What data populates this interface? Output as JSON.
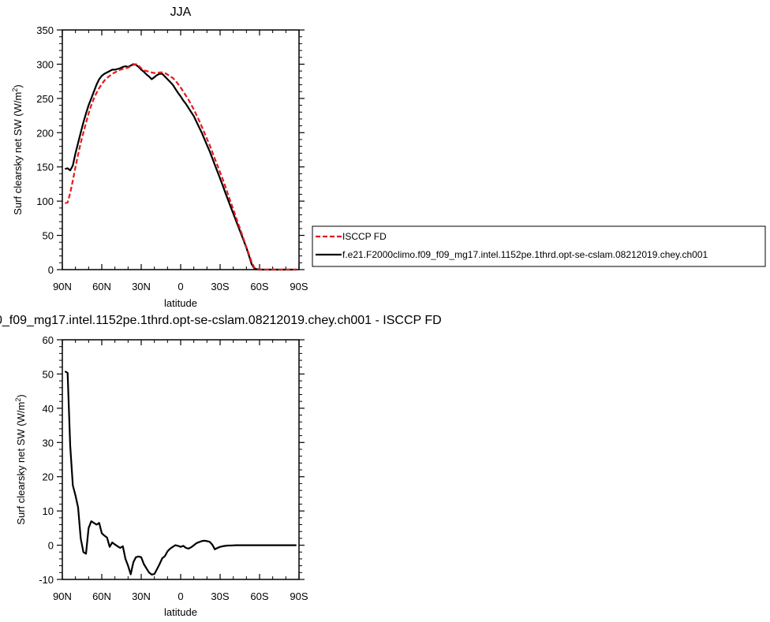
{
  "chart_data": [
    {
      "type": "line",
      "title": "JJA",
      "xlabel": "latitude",
      "ylabel": "Surf clearsky net SW (W/m",
      "ylabel_sup": "2",
      "ylabel_close": ")",
      "xlim": [
        90,
        -90
      ],
      "ylim": [
        0,
        350
      ],
      "x_ticks": [
        90,
        60,
        30,
        0,
        -30,
        -60,
        -90
      ],
      "x_tick_labels": [
        "90N",
        "60N",
        "30N",
        "0",
        "30S",
        "60S",
        "90S"
      ],
      "y_ticks": [
        0,
        50,
        100,
        150,
        200,
        250,
        300,
        350
      ],
      "y_tick_labels": [
        "0",
        "50",
        "100",
        "150",
        "200",
        "250",
        "300",
        "350"
      ],
      "legend_position": "right",
      "series": [
        {
          "name": "ISCCP FD",
          "color": "#e41a1c",
          "dash": "dashed",
          "x": [
            88,
            86,
            84,
            82,
            80,
            78,
            76,
            74,
            72,
            70,
            68,
            66,
            64,
            62,
            60,
            58,
            56,
            54,
            52,
            50,
            48,
            46,
            44,
            42,
            40,
            38,
            36,
            34,
            32,
            30,
            28,
            26,
            24,
            22,
            20,
            18,
            16,
            14,
            12,
            10,
            8,
            6,
            4,
            2,
            0,
            -2,
            -4,
            -6,
            -8,
            -10,
            -12,
            -14,
            -16,
            -18,
            -20,
            -22,
            -24,
            -26,
            -28,
            -30,
            -32,
            -34,
            -36,
            -38,
            -40,
            -42,
            -44,
            -46,
            -48,
            -50,
            -52,
            -54,
            -56,
            -58,
            -60,
            -62,
            -64,
            -66,
            -68,
            -70,
            -72,
            -74,
            -76,
            -78,
            -80,
            -82,
            -84,
            -86,
            -88
          ],
          "y": [
            97,
            98,
            112,
            130,
            150,
            168,
            185,
            200,
            214,
            228,
            240,
            250,
            258,
            265,
            271,
            276,
            280,
            283,
            286,
            288,
            290,
            292,
            293,
            294,
            295,
            297,
            299,
            300,
            298,
            294,
            291,
            290,
            289,
            288,
            287,
            287,
            288,
            288,
            287,
            285,
            282,
            280,
            276,
            271,
            266,
            260,
            254,
            248,
            241,
            234,
            226,
            218,
            209,
            200,
            191,
            182,
            172,
            162,
            152,
            142,
            132,
            121,
            110,
            99,
            88,
            77,
            66,
            55,
            44,
            33,
            22,
            11,
            3,
            1,
            0.5,
            0,
            0,
            0,
            0,
            0,
            0,
            0,
            0,
            0,
            0,
            0,
            0,
            0,
            0
          ]
        },
        {
          "name": "f.e21.F2000climo.f09_f09_mg17.intel.1152pe.1thrd.opt-se-cslam.08212019.chey.ch001",
          "color": "#000000",
          "dash": "solid",
          "x": [
            88,
            86,
            84,
            82,
            80,
            78,
            76,
            74,
            72,
            70,
            68,
            66,
            64,
            62,
            60,
            58,
            56,
            54,
            52,
            50,
            48,
            46,
            44,
            42,
            40,
            38,
            36,
            34,
            32,
            30,
            28,
            26,
            24,
            22,
            20,
            18,
            16,
            14,
            12,
            10,
            8,
            6,
            4,
            2,
            0,
            -2,
            -4,
            -6,
            -8,
            -10,
            -12,
            -14,
            -16,
            -18,
            -20,
            -22,
            -24,
            -26,
            -28,
            -30,
            -32,
            -34,
            -36,
            -38,
            -40,
            -42,
            -44,
            -46,
            -48,
            -50,
            -52,
            -54,
            -56,
            -58,
            -60,
            -62,
            -64,
            -66,
            -68,
            -70,
            -72,
            -74,
            -76,
            -78,
            -80,
            -82,
            -84,
            -86,
            -88
          ],
          "y": [
            147,
            148,
            145,
            152,
            170,
            185,
            200,
            215,
            228,
            240,
            250,
            260,
            270,
            278,
            283,
            286,
            288,
            290,
            292,
            292,
            293,
            294,
            296,
            297,
            296,
            298,
            300,
            299,
            296,
            292,
            289,
            285,
            282,
            278,
            281,
            284,
            286,
            286,
            282,
            278,
            274,
            270,
            264,
            258,
            253,
            247,
            242,
            236,
            230,
            224,
            216,
            208,
            200,
            191,
            182,
            173,
            163,
            153,
            143,
            133,
            123,
            112,
            102,
            92,
            82,
            72,
            62,
            52,
            42,
            32,
            20,
            8,
            2,
            0.5,
            0,
            0,
            0,
            0,
            0,
            0,
            0,
            0,
            0,
            0,
            0,
            0,
            0,
            0,
            0
          ]
        }
      ]
    },
    {
      "type": "line",
      "title": "_f09_mg17.intel.1152pe.1thrd.opt-se-cslam.08212019.chey.ch001 - ISCCP FD",
      "title_prefix": "0",
      "xlabel": "latitude",
      "ylabel": "Surf clearsky net SW (W/m",
      "ylabel_sup": "2",
      "ylabel_close": ")",
      "xlim": [
        90,
        -90
      ],
      "ylim": [
        -10,
        60
      ],
      "x_ticks": [
        90,
        60,
        30,
        0,
        -30,
        -60,
        -90
      ],
      "x_tick_labels": [
        "90N",
        "60N",
        "30N",
        "0",
        "30S",
        "60S",
        "90S"
      ],
      "y_ticks": [
        -10,
        0,
        10,
        20,
        30,
        40,
        50,
        60
      ],
      "y_tick_labels": [
        "-10",
        "0",
        "10",
        "20",
        "30",
        "40",
        "50",
        "60"
      ],
      "series": [
        {
          "color": "#000000",
          "dash": "solid",
          "x": [
            88,
            86,
            84,
            82,
            80,
            78,
            76,
            74,
            72,
            70,
            68,
            66,
            64,
            62,
            60,
            58,
            56,
            54,
            52,
            50,
            48,
            46,
            44,
            42,
            40,
            38,
            36,
            34,
            32,
            30,
            28,
            26,
            24,
            22,
            20,
            18,
            16,
            14,
            12,
            10,
            8,
            6,
            4,
            2,
            0,
            -2,
            -4,
            -6,
            -8,
            -10,
            -12,
            -14,
            -16,
            -18,
            -20,
            -22,
            -24,
            -26,
            -28,
            -30,
            -32,
            -34,
            -36,
            -38,
            -40,
            -42,
            -44,
            -46,
            -48,
            -50,
            -52,
            -54,
            -56,
            -58,
            -60,
            -62,
            -64,
            -66,
            -68,
            -70,
            -72,
            -74,
            -76,
            -78,
            -80,
            -82,
            -84,
            -86,
            -88
          ],
          "y": [
            50.8,
            50.3,
            29,
            17.5,
            14.5,
            11,
            2,
            -2,
            -2.5,
            5,
            7,
            6.5,
            6,
            6.5,
            3.5,
            2.8,
            2.2,
            -0.5,
            0.8,
            0.2,
            -0.3,
            -0.8,
            -0.3,
            -4,
            -6,
            -8.5,
            -5,
            -3.5,
            -3.3,
            -3.5,
            -5.5,
            -6.8,
            -8,
            -8.6,
            -8.4,
            -7,
            -5.5,
            -3.8,
            -3.2,
            -1.8,
            -1,
            -0.5,
            0,
            -0.2,
            -0.5,
            -0.2,
            -0.8,
            -1,
            -0.6,
            0,
            0.6,
            0.9,
            1.2,
            1.3,
            1.2,
            1.0,
            0.2,
            -1.2,
            -0.8,
            -0.5,
            -0.3,
            -0.2,
            -0.1,
            -0.1,
            -0.05,
            0,
            0,
            0,
            0,
            0,
            0,
            0,
            0,
            0,
            0,
            0,
            0,
            0,
            0,
            0,
            0,
            0,
            0,
            0,
            0,
            0,
            0,
            0,
            0
          ]
        }
      ]
    }
  ]
}
